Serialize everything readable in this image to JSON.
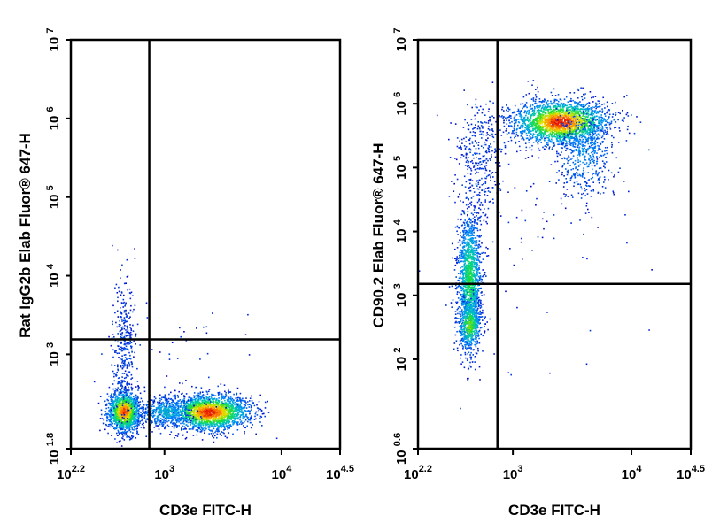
{
  "chart_data": [
    {
      "type": "scatter",
      "title": "",
      "xlabel": "CD3e FITC-H",
      "ylabel": "Rat IgG2b Elab Fluor® 647-H",
      "xscale": "log10",
      "yscale": "log10",
      "xlim": [
        2.2,
        4.5
      ],
      "ylim": [
        1.8,
        7
      ],
      "xticks": [
        {
          "exp": 2.2,
          "base": "10",
          "sup": "2.2"
        },
        {
          "exp": 3,
          "base": "10",
          "sup": "3"
        },
        {
          "exp": 4,
          "base": "10",
          "sup": "4"
        },
        {
          "exp": 4.5,
          "base": "10",
          "sup": "4.5"
        }
      ],
      "yticks": [
        {
          "exp": 1.8,
          "base": "10",
          "sup": "1.8"
        },
        {
          "exp": 3,
          "base": "10",
          "sup": "3"
        },
        {
          "exp": 4,
          "base": "10",
          "sup": "4"
        },
        {
          "exp": 5,
          "base": "10",
          "sup": "5"
        },
        {
          "exp": 6,
          "base": "10",
          "sup": "6"
        },
        {
          "exp": 7,
          "base": "10",
          "sup": "7"
        }
      ],
      "gate": {
        "x": 2.87,
        "y": 3.19
      },
      "populations": [
        {
          "name": "CD3- cluster",
          "cx": 2.65,
          "cy": 2.28,
          "sx": 0.07,
          "sy": 0.13,
          "n": 1400,
          "hot": 0.9
        },
        {
          "name": "CD3- tail",
          "cx": 2.65,
          "cy": 3.1,
          "sx": 0.05,
          "sy": 0.45,
          "n": 350,
          "hot": 0.05
        },
        {
          "name": "CD3+ cluster",
          "cx": 3.38,
          "cy": 2.27,
          "sx": 0.17,
          "sy": 0.11,
          "n": 2100,
          "hot": 0.95
        },
        {
          "name": "bridge",
          "cx": 3.0,
          "cy": 2.27,
          "sx": 0.12,
          "sy": 0.1,
          "n": 450,
          "hot": 0.3
        },
        {
          "name": "scatter",
          "cx": 3.2,
          "cy": 2.7,
          "sx": 0.35,
          "sy": 0.45,
          "n": 60,
          "hot": 0.0
        }
      ]
    },
    {
      "type": "scatter",
      "title": "",
      "xlabel": "CD3e FITC-H",
      "ylabel": "CD90.2 Elab Fluor® 647-H",
      "xscale": "log10",
      "yscale": "log10",
      "xlim": [
        2.2,
        4.5
      ],
      "ylim": [
        0.6,
        7
      ],
      "xticks": [
        {
          "exp": 2.2,
          "base": "10",
          "sup": "2.2"
        },
        {
          "exp": 3,
          "base": "10",
          "sup": "3"
        },
        {
          "exp": 4,
          "base": "10",
          "sup": "4"
        },
        {
          "exp": 4.5,
          "base": "10",
          "sup": "4.5"
        }
      ],
      "yticks": [
        {
          "exp": 0.6,
          "base": "10",
          "sup": "0.6"
        },
        {
          "exp": 2,
          "base": "10",
          "sup": "2"
        },
        {
          "exp": 3,
          "base": "10",
          "sup": "3"
        },
        {
          "exp": 4,
          "base": "10",
          "sup": "4"
        },
        {
          "exp": 5,
          "base": "10",
          "sup": "5"
        },
        {
          "exp": 6,
          "base": "10",
          "sup": "6"
        },
        {
          "exp": 7,
          "base": "10",
          "sup": "7"
        }
      ],
      "gate": {
        "x": 2.87,
        "y": 3.18
      },
      "populations": [
        {
          "name": "CD3+ CD90.2+ cluster",
          "cx": 3.4,
          "cy": 5.72,
          "sx": 0.2,
          "sy": 0.17,
          "n": 2300,
          "hot": 0.95
        },
        {
          "name": "CD3+ CD90.2+ tail",
          "cx": 3.6,
          "cy": 5.25,
          "sx": 0.12,
          "sy": 0.35,
          "n": 500,
          "hot": 0.2
        },
        {
          "name": "CD3- column",
          "cx": 2.63,
          "cy": 3.25,
          "sx": 0.05,
          "sy": 0.55,
          "n": 1500,
          "hot": 0.5
        },
        {
          "name": "CD3- low",
          "cx": 2.63,
          "cy": 2.55,
          "sx": 0.05,
          "sy": 0.2,
          "n": 450,
          "hot": 0.6
        },
        {
          "name": "transition",
          "cx": 2.72,
          "cy": 5.2,
          "sx": 0.1,
          "sy": 0.45,
          "n": 350,
          "hot": 0.05
        },
        {
          "name": "scatter",
          "cx": 3.3,
          "cy": 4.0,
          "sx": 0.4,
          "sy": 0.9,
          "n": 70,
          "hot": 0.0
        }
      ]
    }
  ]
}
